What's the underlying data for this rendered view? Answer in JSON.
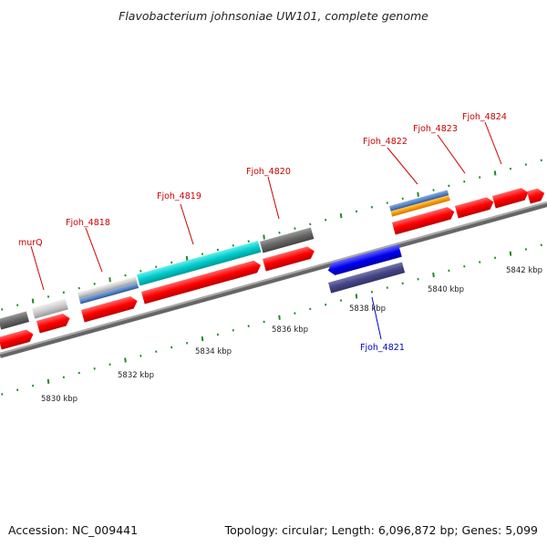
{
  "title": "Flavobacterium johnsoniae UW101, complete genome",
  "footer": {
    "accession": "Accession: NC_009441",
    "summary": "Topology: circular; Length: 6,096,872 bp; Genes: 5,099"
  },
  "scale_labels": [
    "5830 kbp",
    "5832 kbp",
    "5834 kbp",
    "5836 kbp",
    "5838 kbp",
    "5840 kbp",
    "5842 kbp"
  ],
  "gene_labels": [
    {
      "text": "murQ",
      "color": "#cc0000"
    },
    {
      "text": "Fjoh_4818",
      "color": "#cc0000"
    },
    {
      "text": "Fjoh_4819",
      "color": "#cc0000"
    },
    {
      "text": "Fjoh_4820",
      "color": "#cc0000"
    },
    {
      "text": "Fjoh_4822",
      "color": "#cc0000"
    },
    {
      "text": "Fjoh_4823",
      "color": "#cc0000"
    },
    {
      "text": "Fjoh_4824",
      "color": "#cc0000"
    },
    {
      "text": "Fjoh_4821",
      "color": "#0000cc"
    }
  ],
  "colors": {
    "cds": "#ff0000",
    "gene": "#666666",
    "backbone": "#888888",
    "tick": "#228b22",
    "light_gene": "#cccccc",
    "misc": "#5588cc",
    "cyan": "#00cccc",
    "orange": "#ff9900",
    "blue": "#0000ee",
    "navy": "#444488"
  }
}
